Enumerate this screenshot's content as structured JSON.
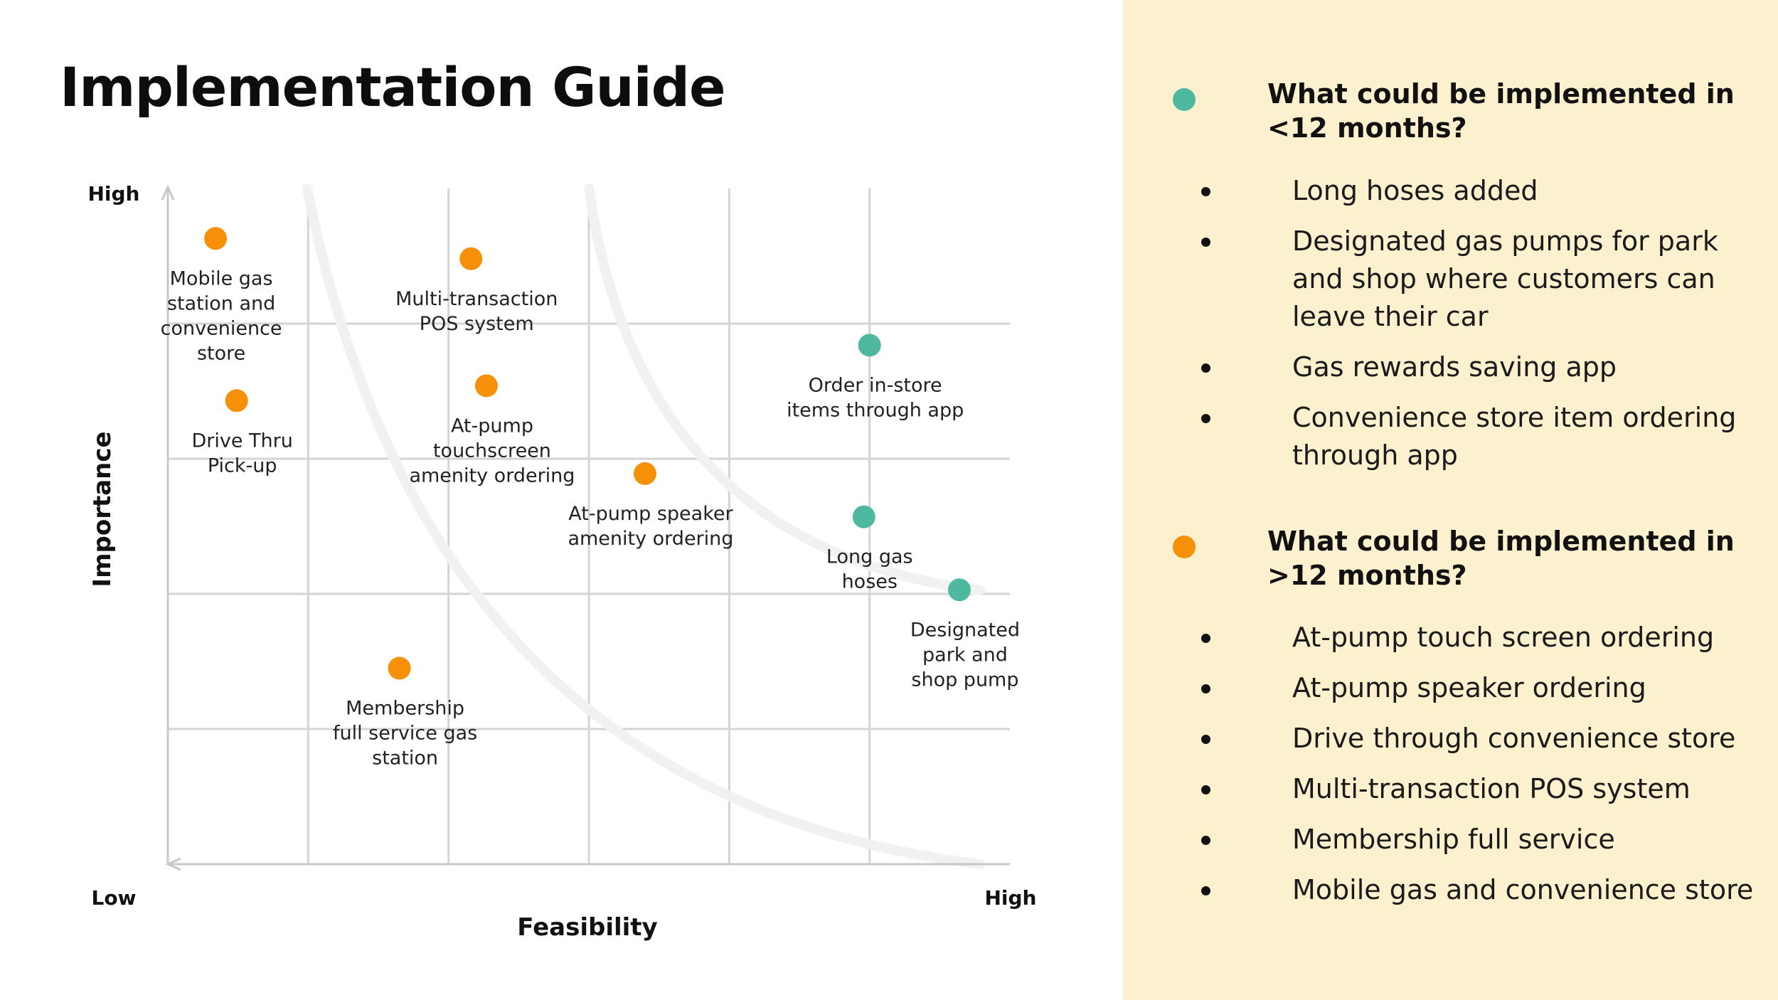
{
  "title": "Implementation Guide",
  "colors": {
    "short_term": "#4fb9a0",
    "long_term": "#f79009",
    "panel": "#fcf1cf"
  },
  "chart_data": {
    "type": "scatter",
    "xlabel": "Feasibility",
    "ylabel": "Importance",
    "x_low_label": "Low",
    "x_high_label": "High",
    "y_high_label": "High",
    "xlim": [
      0,
      6
    ],
    "ylim": [
      0,
      5
    ],
    "grid": true,
    "points": [
      {
        "label": "Mobile gas station and convenience store",
        "lines": [
          "Mobile gas",
          "station and",
          "convenience",
          "store"
        ],
        "x": 0.34,
        "y": 4.63,
        "group": "long"
      },
      {
        "label": "Multi-transaction POS system",
        "lines": [
          "Multi-transaction",
          "POS system"
        ],
        "x": 2.16,
        "y": 4.48,
        "group": "long"
      },
      {
        "label": "Drive Thru Pick-up",
        "lines": [
          "Drive Thru",
          "Pick-up"
        ],
        "x": 0.49,
        "y": 3.43,
        "group": "long"
      },
      {
        "label": "At-pump touchscreen amenity ordering",
        "lines": [
          "At-pump",
          "touchscreen",
          "amenity ordering"
        ],
        "x": 2.27,
        "y": 3.54,
        "group": "long"
      },
      {
        "label": "At-pump speaker amenity ordering",
        "lines": [
          "At-pump speaker",
          "amenity ordering"
        ],
        "x": 3.4,
        "y": 2.89,
        "group": "long"
      },
      {
        "label": "Membership full service gas station",
        "lines": [
          "Membership",
          "full service gas",
          "station"
        ],
        "x": 1.65,
        "y": 1.45,
        "group": "long"
      },
      {
        "label": "Order in-store items through app",
        "lines": [
          "Order in-store",
          "items through app"
        ],
        "x": 5.0,
        "y": 3.84,
        "group": "short"
      },
      {
        "label": "Long gas hoses",
        "lines": [
          "Long gas",
          "hoses"
        ],
        "x": 4.96,
        "y": 2.57,
        "group": "short"
      },
      {
        "label": "Designated park and shop pump",
        "lines": [
          "Designated",
          "park and",
          "shop pump"
        ],
        "x": 5.64,
        "y": 2.03,
        "group": "short"
      }
    ]
  },
  "sections": [
    {
      "title_lines": [
        "What could be implemented in",
        "<12 months?"
      ],
      "items": [
        {
          "lines": [
            "Long hoses added"
          ]
        },
        {
          "lines": [
            "Designated gas pumps for park",
            "and shop where customers can",
            "leave their car"
          ]
        },
        {
          "lines": [
            "Gas rewards saving app"
          ]
        },
        {
          "lines": [
            "Convenience store item ordering",
            "through app"
          ]
        }
      ]
    },
    {
      "title_lines": [
        "What could be implemented in",
        ">12 months?"
      ],
      "items": [
        {
          "lines": [
            "At-pump touch screen ordering"
          ]
        },
        {
          "lines": [
            "At-pump speaker ordering"
          ]
        },
        {
          "lines": [
            "Drive through convenience store"
          ]
        },
        {
          "lines": [
            "Multi-transaction POS system"
          ]
        },
        {
          "lines": [
            "Membership full service"
          ]
        },
        {
          "lines": [
            "Mobile gas and convenience store"
          ]
        }
      ]
    }
  ]
}
